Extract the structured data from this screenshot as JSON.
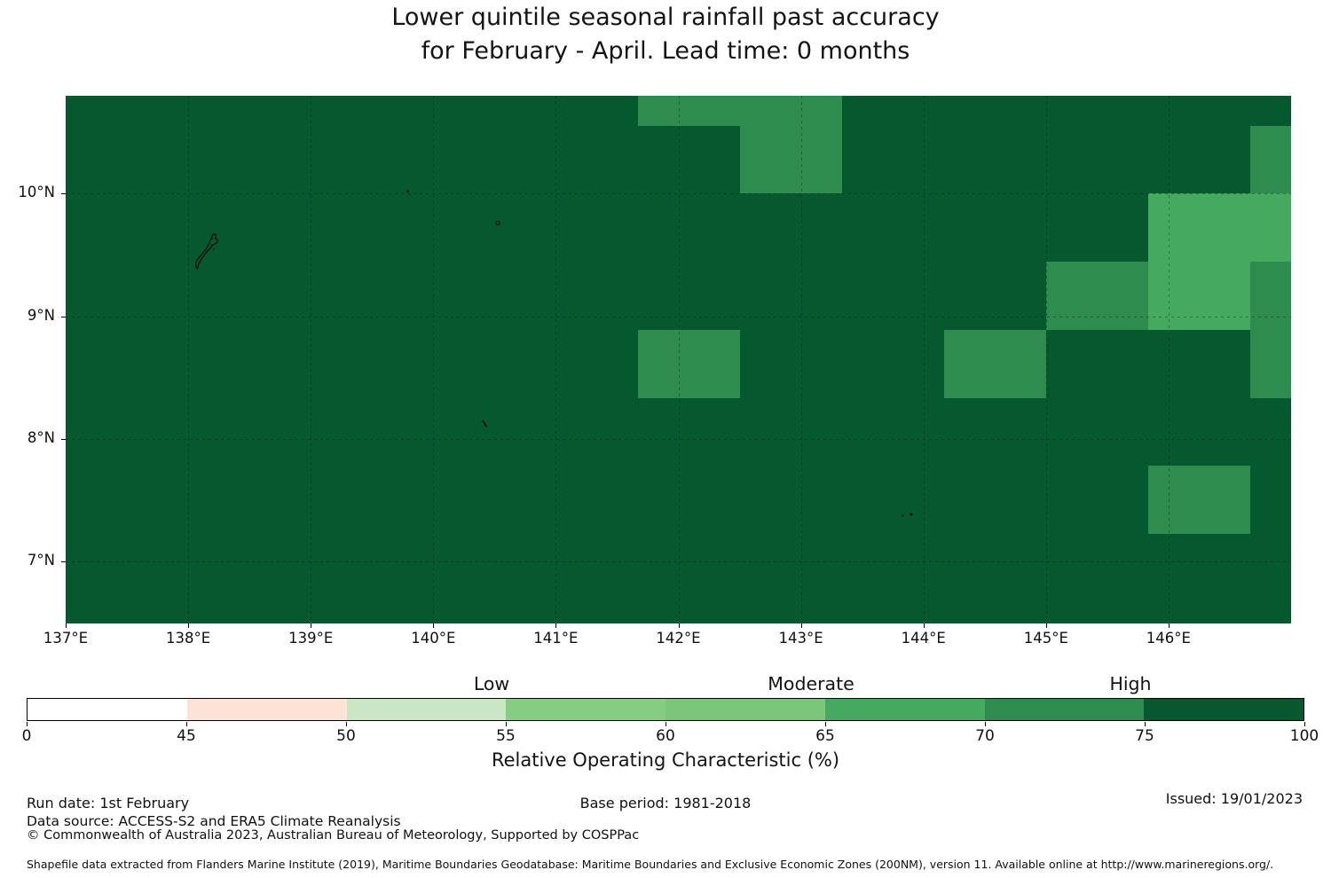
{
  "title": {
    "line1": "Lower quintile seasonal rainfall past accuracy",
    "line2": "for February - April. Lead time: 0 months"
  },
  "chart_data": {
    "type": "heatmap",
    "title": "Lower quintile seasonal rainfall past accuracy for February - April. Lead time: 0 months",
    "x_axis": {
      "ticks": [
        {
          "value": 137,
          "label": "137°E"
        },
        {
          "value": 138,
          "label": "138°E"
        },
        {
          "value": 139,
          "label": "139°E"
        },
        {
          "value": 140,
          "label": "140°E"
        },
        {
          "value": 141,
          "label": "141°E"
        },
        {
          "value": 142,
          "label": "142°E"
        },
        {
          "value": 143,
          "label": "143°E"
        },
        {
          "value": 144,
          "label": "144°E"
        },
        {
          "value": 145,
          "label": "145°E"
        },
        {
          "value": 146,
          "label": "146°E"
        }
      ],
      "range_deg": [
        137.0,
        147.0
      ]
    },
    "y_axis": {
      "ticks": [
        {
          "value": 10,
          "label": "10°N"
        },
        {
          "value": 9,
          "label": "9°N"
        },
        {
          "value": 8,
          "label": "8°N"
        },
        {
          "value": 7,
          "label": "7°N"
        }
      ],
      "range_deg": [
        6.49,
        10.8
      ]
    },
    "grid": "dashed 1-degree graticule",
    "base_color": "#06582f",
    "base_value_bin": "75-100",
    "cells": [
      {
        "lon_min": 141.667,
        "lon_max": 143.333,
        "lat_min": 10.556,
        "lat_max": 10.8,
        "bin": "70-75",
        "color": "#2e8d4e"
      },
      {
        "lon_min": 142.5,
        "lon_max": 143.333,
        "lat_min": 10.0,
        "lat_max": 10.556,
        "bin": "70-75",
        "color": "#2e8d4e"
      },
      {
        "lon_min": 146.667,
        "lon_max": 147.0,
        "lat_min": 10.0,
        "lat_max": 10.556,
        "bin": "70-75",
        "color": "#2e8d4e"
      },
      {
        "lon_min": 145.833,
        "lon_max": 147.0,
        "lat_min": 9.444,
        "lat_max": 10.0,
        "bin": "65-70",
        "color": "#45aa5f"
      },
      {
        "lon_min": 145.833,
        "lon_max": 146.667,
        "lat_min": 8.889,
        "lat_max": 9.444,
        "bin": "65-70",
        "color": "#45aa5f"
      },
      {
        "lon_min": 145.0,
        "lon_max": 145.833,
        "lat_min": 8.889,
        "lat_max": 9.444,
        "bin": "70-75",
        "color": "#2e8d4e"
      },
      {
        "lon_min": 146.667,
        "lon_max": 147.0,
        "lat_min": 8.333,
        "lat_max": 9.444,
        "bin": "70-75",
        "color": "#2e8d4e"
      },
      {
        "lon_min": 141.667,
        "lon_max": 142.5,
        "lat_min": 8.333,
        "lat_max": 8.889,
        "bin": "70-75",
        "color": "#2e8d4e"
      },
      {
        "lon_min": 144.167,
        "lon_max": 145.0,
        "lat_min": 8.333,
        "lat_max": 8.889,
        "bin": "70-75",
        "color": "#2e8d4e"
      },
      {
        "lon_min": 145.833,
        "lon_max": 146.667,
        "lat_min": 7.222,
        "lat_max": 7.778,
        "bin": "70-75",
        "color": "#2e8d4e"
      }
    ],
    "colorbar": {
      "label": "Relative Operating Characteristic (%)",
      "boundaries": [
        0,
        45,
        50,
        55,
        60,
        65,
        70,
        75,
        100
      ],
      "segment_colors": [
        "#ffffff",
        "#fce3d5",
        "#c8e7c2",
        "#85cd83",
        "#7cc67c",
        "#45aa5f",
        "#2e8d4e",
        "#07582f"
      ],
      "region_labels": [
        {
          "text": "Low",
          "at_value": 55
        },
        {
          "text": "Moderate",
          "at_value": 65
        },
        {
          "text": "High",
          "at_value": 75
        }
      ]
    }
  },
  "footer": {
    "run_date": "Run date: 1st February",
    "base_period": "Base period: 1981-2018",
    "issued": "Issued: 19/01/2023",
    "data_source": "Data source: ACCESS-S2 and ERA5 Climate Reanalysis",
    "copyright": "© Commonwealth of Australia 2023, Australian Bureau of Meteorology, Supported by COSPPac",
    "shapefile_note": "Shapefile data extracted from Flanders Marine Institute (2019), Maritime Boundaries Geodatabase: Maritime Boundaries and Exclusive Economic Zones (200NM), version 11. Available online at http://www.marineregions.org/."
  }
}
